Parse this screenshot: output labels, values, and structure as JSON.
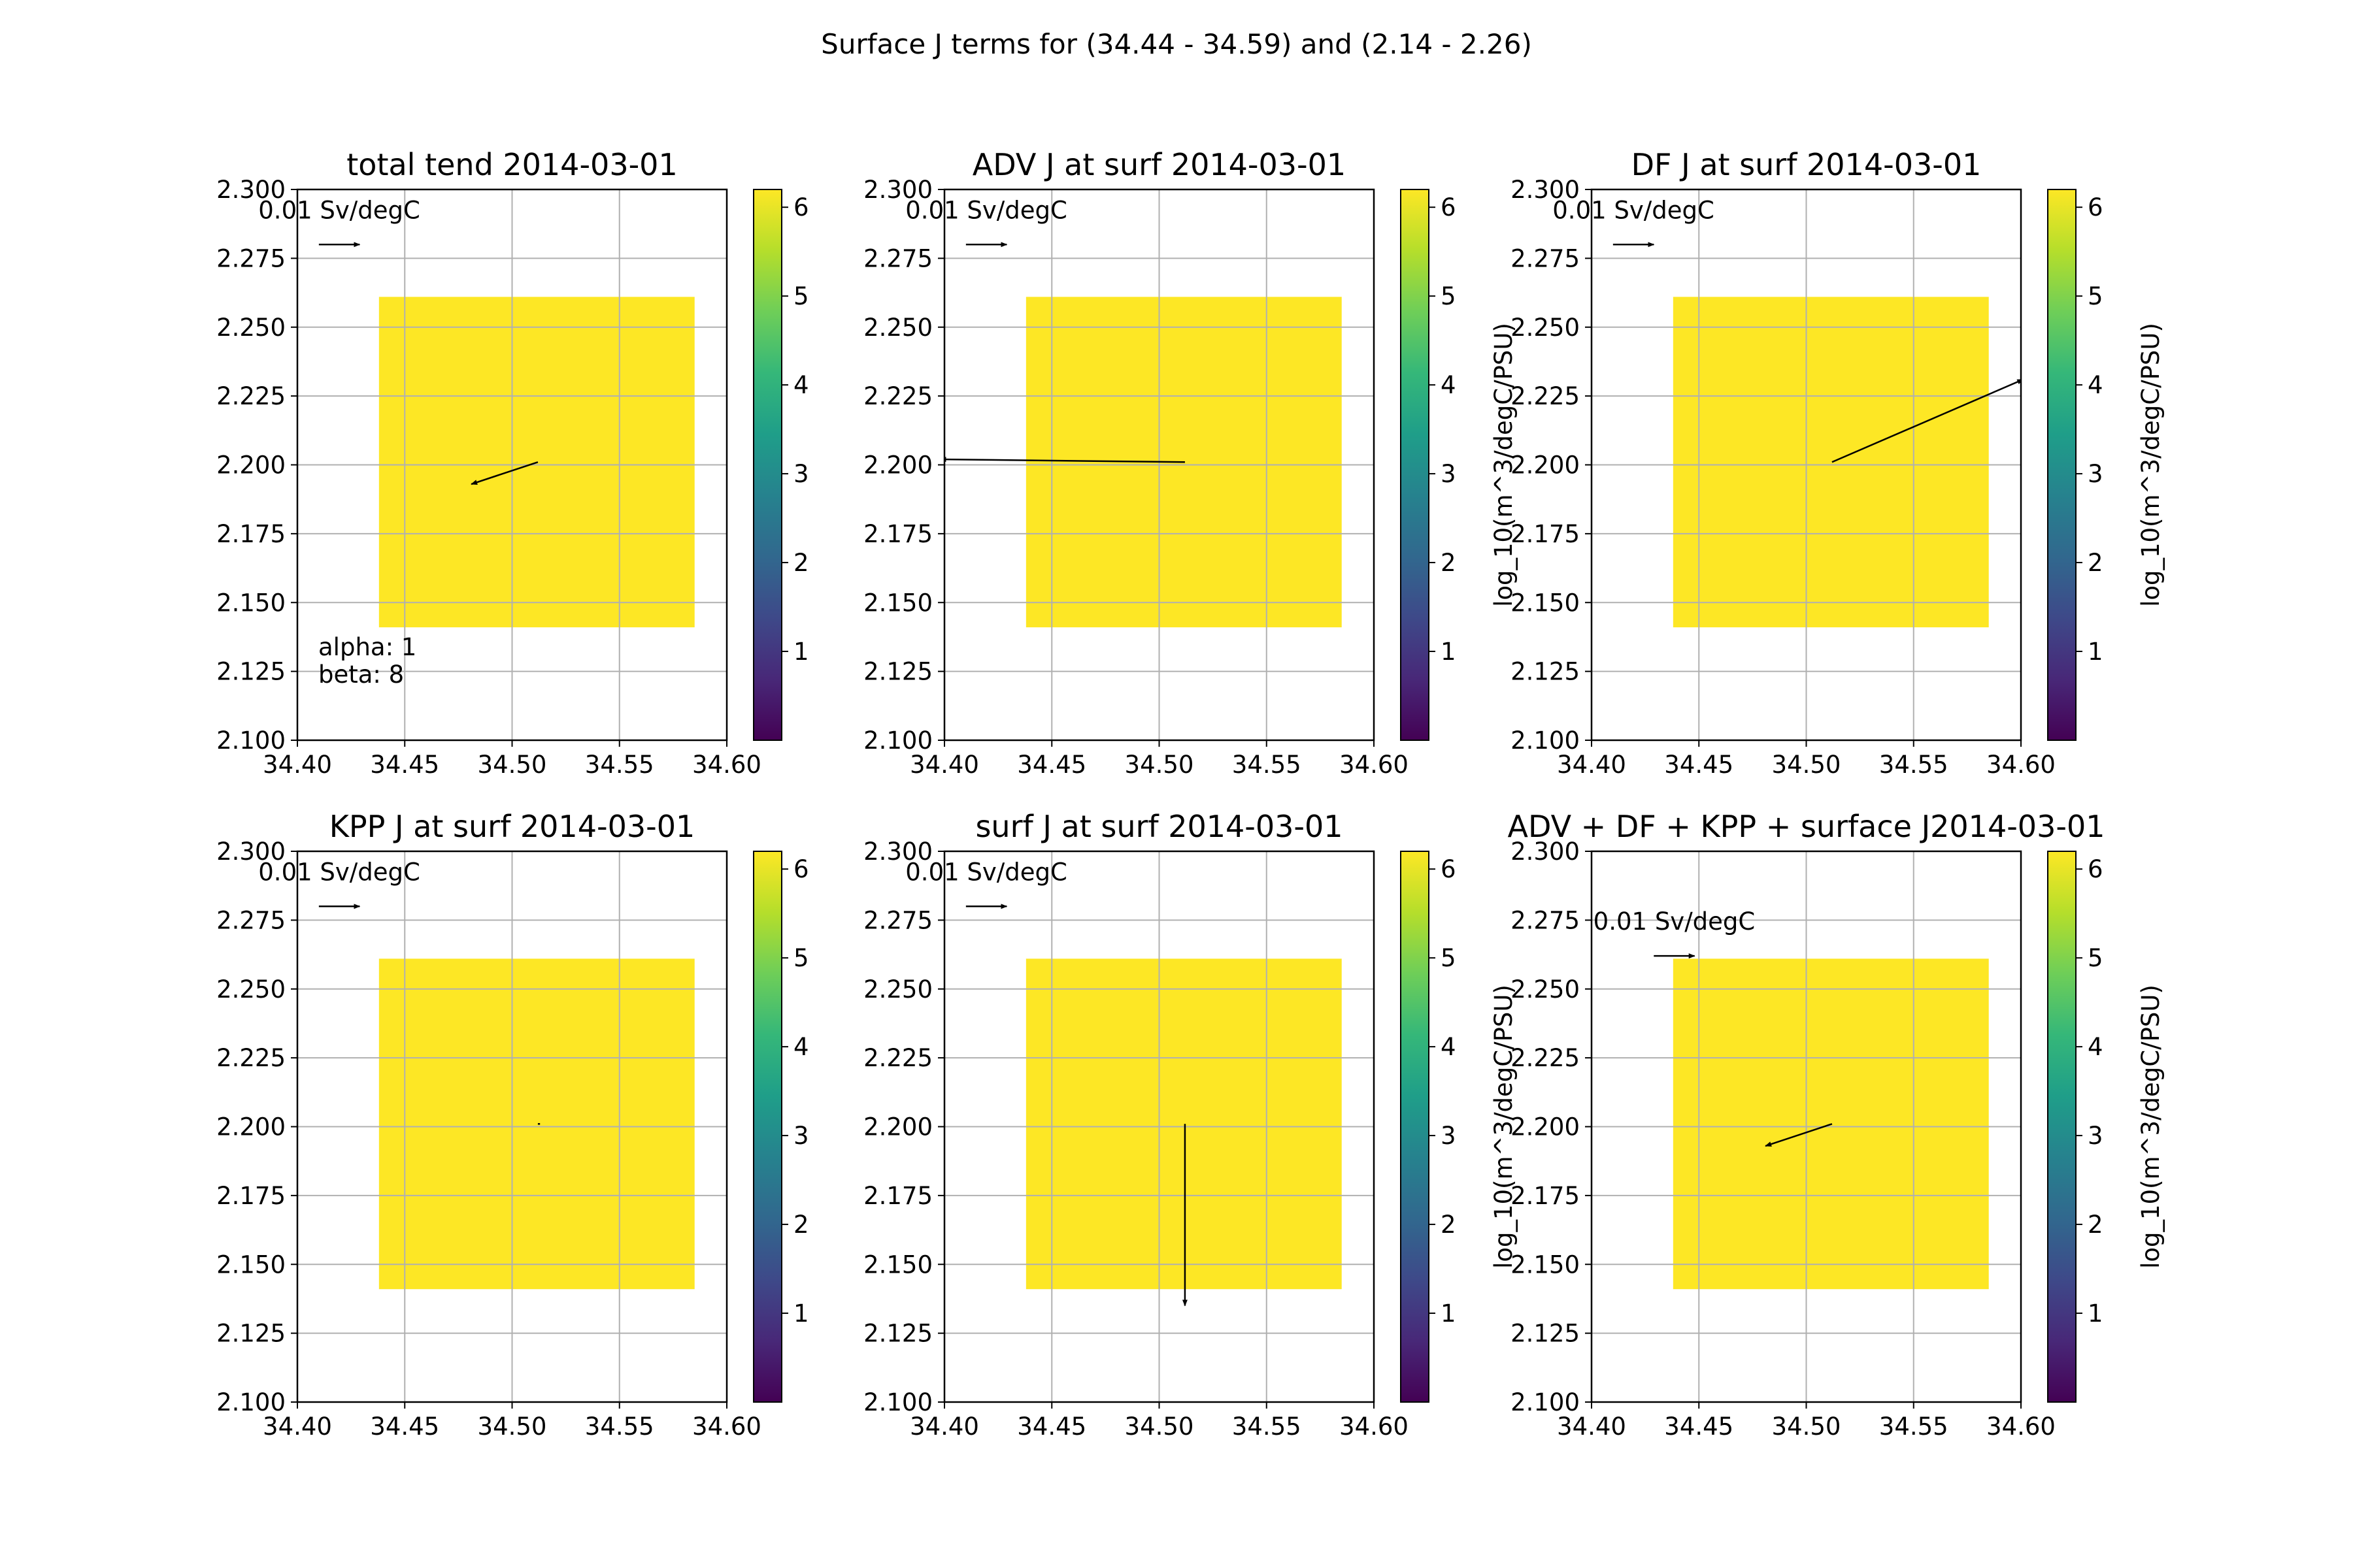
{
  "figure": {
    "suptitle": "Surface J terms for (34.44 - 34.59) and (2.14 - 2.26)",
    "colors": {
      "field": "#fde725",
      "grid": "#b0b0b0",
      "arrow": "#000000",
      "colormap": [
        "#440154",
        "#482878",
        "#3e4989",
        "#31688e",
        "#26828e",
        "#1f9e89",
        "#35b779",
        "#6ece58",
        "#b5de2b",
        "#fde725"
      ]
    }
  },
  "chart_data": [
    {
      "type": "heatmap",
      "title": "total tend 2014-03-01",
      "xlim": [
        34.4,
        34.6
      ],
      "ylim": [
        2.1,
        2.3
      ],
      "x_ticks": [
        "34.40",
        "34.45",
        "34.50",
        "34.55",
        "34.60"
      ],
      "y_ticks": [
        "2.100",
        "2.125",
        "2.150",
        "2.175",
        "2.200",
        "2.225",
        "2.250",
        "2.275",
        "2.300"
      ],
      "grid": true,
      "field": {
        "x_range": [
          34.438,
          34.585
        ],
        "y_range": [
          2.141,
          2.261
        ],
        "value": 6.1
      },
      "quiver_key": {
        "label": "0.01 Sv/degC",
        "x0": 34.41,
        "x1": 34.429,
        "y": 2.28
      },
      "arrow": {
        "x0": 34.512,
        "y0": 2.201,
        "x1": 34.481,
        "y1": 2.193
      },
      "notes": [
        "alpha: 1",
        "beta: 8"
      ],
      "colorbar": {
        "min": 0,
        "max": 6.2,
        "ticks": [
          "1",
          "2",
          "3",
          "4",
          "5",
          "6"
        ],
        "label": ""
      }
    },
    {
      "type": "heatmap",
      "title": "ADV J at surf 2014-03-01",
      "xlim": [
        34.4,
        34.6
      ],
      "ylim": [
        2.1,
        2.3
      ],
      "x_ticks": [
        "34.40",
        "34.45",
        "34.50",
        "34.55",
        "34.60"
      ],
      "y_ticks": [
        "2.100",
        "2.125",
        "2.150",
        "2.175",
        "2.200",
        "2.225",
        "2.250",
        "2.275",
        "2.300"
      ],
      "grid": true,
      "field": {
        "x_range": [
          34.438,
          34.585
        ],
        "y_range": [
          2.141,
          2.261
        ],
        "value": 6.1
      },
      "quiver_key": {
        "label": "0.01 Sv/degC",
        "x0": 34.41,
        "x1": 34.429,
        "y": 2.28
      },
      "arrow": {
        "x0": 34.512,
        "y0": 2.201,
        "x1": 34.398,
        "y1": 2.202
      },
      "notes": [],
      "colorbar": {
        "min": 0,
        "max": 6.2,
        "ticks": [
          "1",
          "2",
          "3",
          "4",
          "5",
          "6"
        ],
        "label": "log_10(m^3/degC/PSU)"
      }
    },
    {
      "type": "heatmap",
      "title": "DF J at surf 2014-03-01",
      "xlim": [
        34.4,
        34.6
      ],
      "ylim": [
        2.1,
        2.3
      ],
      "x_ticks": [
        "34.40",
        "34.45",
        "34.50",
        "34.55",
        "34.60"
      ],
      "y_ticks": [
        "2.100",
        "2.125",
        "2.150",
        "2.175",
        "2.200",
        "2.225",
        "2.250",
        "2.275",
        "2.300"
      ],
      "grid": true,
      "field": {
        "x_range": [
          34.438,
          34.585
        ],
        "y_range": [
          2.141,
          2.261
        ],
        "value": 6.1
      },
      "quiver_key": {
        "label": "0.01 Sv/degC",
        "x0": 34.41,
        "x1": 34.429,
        "y": 2.28
      },
      "arrow": {
        "x0": 34.512,
        "y0": 2.201,
        "x1": 34.601,
        "y1": 2.231
      },
      "notes": [],
      "colorbar": {
        "min": 0,
        "max": 6.2,
        "ticks": [
          "1",
          "2",
          "3",
          "4",
          "5",
          "6"
        ],
        "label": "log_10(m^3/degC/PSU)"
      }
    },
    {
      "type": "heatmap",
      "title": "KPP J at surf 2014-03-01",
      "xlim": [
        34.4,
        34.6
      ],
      "ylim": [
        2.1,
        2.3
      ],
      "x_ticks": [
        "34.40",
        "34.45",
        "34.50",
        "34.55",
        "34.60"
      ],
      "y_ticks": [
        "2.100",
        "2.125",
        "2.150",
        "2.175",
        "2.200",
        "2.225",
        "2.250",
        "2.275",
        "2.300"
      ],
      "grid": true,
      "field": {
        "x_range": [
          34.438,
          34.585
        ],
        "y_range": [
          2.141,
          2.261
        ],
        "value": 6.1
      },
      "quiver_key": {
        "label": "0.01 Sv/degC",
        "x0": 34.41,
        "x1": 34.429,
        "y": 2.28
      },
      "arrow": {
        "x0": 34.512,
        "y0": 2.201,
        "x1": 34.513,
        "y1": 2.201
      },
      "notes": [],
      "colorbar": {
        "min": 0,
        "max": 6.2,
        "ticks": [
          "1",
          "2",
          "3",
          "4",
          "5",
          "6"
        ],
        "label": ""
      }
    },
    {
      "type": "heatmap",
      "title": "surf J at surf 2014-03-01",
      "xlim": [
        34.4,
        34.6
      ],
      "ylim": [
        2.1,
        2.3
      ],
      "x_ticks": [
        "34.40",
        "34.45",
        "34.50",
        "34.55",
        "34.60"
      ],
      "y_ticks": [
        "2.100",
        "2.125",
        "2.150",
        "2.175",
        "2.200",
        "2.225",
        "2.250",
        "2.275",
        "2.300"
      ],
      "grid": true,
      "field": {
        "x_range": [
          34.438,
          34.585
        ],
        "y_range": [
          2.141,
          2.261
        ],
        "value": 6.1
      },
      "quiver_key": {
        "label": "0.01 Sv/degC",
        "x0": 34.41,
        "x1": 34.429,
        "y": 2.28
      },
      "arrow": {
        "x0": 34.512,
        "y0": 2.201,
        "x1": 34.512,
        "y1": 2.135
      },
      "notes": [],
      "colorbar": {
        "min": 0,
        "max": 6.2,
        "ticks": [
          "1",
          "2",
          "3",
          "4",
          "5",
          "6"
        ],
        "label": "log_10(m^3/degC/PSU)"
      }
    },
    {
      "type": "heatmap",
      "title": "ADV + DF + KPP + surface J2014-03-01",
      "xlim": [
        34.4,
        34.6
      ],
      "ylim": [
        2.1,
        2.3
      ],
      "x_ticks": [
        "34.40",
        "34.45",
        "34.50",
        "34.55",
        "34.60"
      ],
      "y_ticks": [
        "2.100",
        "2.125",
        "2.150",
        "2.175",
        "2.200",
        "2.225",
        "2.250",
        "2.275",
        "2.300"
      ],
      "grid": true,
      "field": {
        "x_range": [
          34.438,
          34.585
        ],
        "y_range": [
          2.141,
          2.261
        ],
        "value": 6.1
      },
      "quiver_key": {
        "label": "0.01 Sv/degC",
        "x0": 34.429,
        "x1": 34.448,
        "y": 2.262
      },
      "arrow": {
        "x0": 34.512,
        "y0": 2.201,
        "x1": 34.481,
        "y1": 2.193
      },
      "notes": [],
      "colorbar": {
        "min": 0,
        "max": 6.2,
        "ticks": [
          "1",
          "2",
          "3",
          "4",
          "5",
          "6"
        ],
        "label": "log_10(m^3/degC/PSU)"
      }
    }
  ]
}
